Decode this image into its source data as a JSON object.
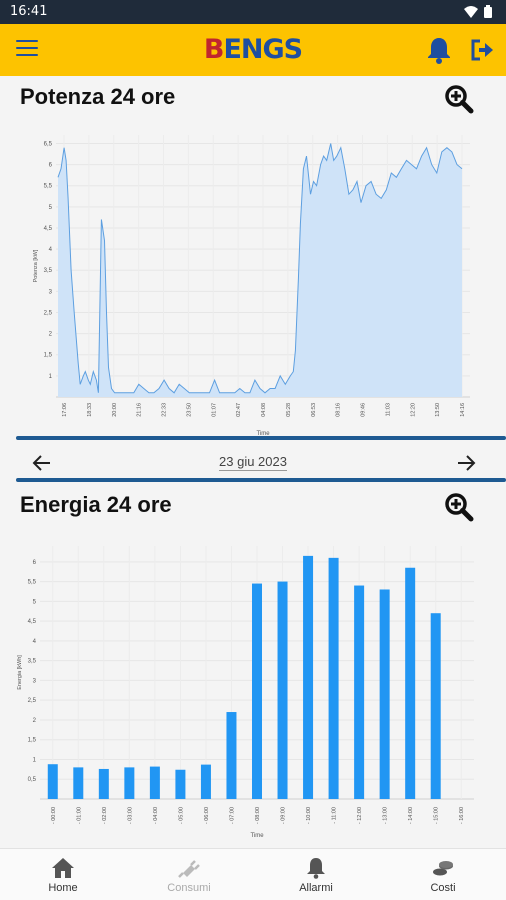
{
  "status_bar": {
    "time": "16:41"
  },
  "app": {
    "logo_first": "B",
    "logo_rest": "ENGS"
  },
  "power_section": {
    "title": "Potenza 24 ore"
  },
  "energy_section": {
    "title": "Energia 24 ore"
  },
  "date_nav": {
    "date": "23 giu 2023"
  },
  "bottom_nav": {
    "items": [
      {
        "label": "Home",
        "icon": "home-icon",
        "enabled": true
      },
      {
        "label": "Consumi",
        "icon": "plug-icon",
        "enabled": false
      },
      {
        "label": "Allarmi",
        "icon": "bell-icon",
        "enabled": true
      },
      {
        "label": "Costi",
        "icon": "coins-icon",
        "enabled": true
      }
    ]
  },
  "colors": {
    "accent": "#fdc300",
    "brand_blue": "#1f4fa0",
    "brand_red": "#c0262e",
    "bar": "#2196f3",
    "area_fill": "#cfe3f8",
    "area_line": "#5d9fe0",
    "divider": "#1e5a92"
  },
  "chart_data": [
    {
      "type": "area",
      "title": "",
      "xlabel": "Time",
      "ylabel": "Potenza [kW]",
      "ylim": [
        0.5,
        6.7
      ],
      "yticks": [
        "1",
        "1,5",
        "2",
        "2,5",
        "3",
        "3,5",
        "4",
        "4,5",
        "5",
        "5,5",
        "6",
        "6,5"
      ],
      "ytick_values": [
        1,
        1.5,
        2,
        2.5,
        3,
        3.5,
        4,
        4.5,
        5,
        5.5,
        6,
        6.5
      ],
      "xticks": [
        "17:06",
        "18:33",
        "20:00",
        "21:16",
        "22:33",
        "23:50",
        "01:07",
        "02:47",
        "04:08",
        "05:28",
        "06:53",
        "08:16",
        "09:46",
        "11:03",
        "12:20",
        "13:50",
        "14:16"
      ],
      "grid": true,
      "x": [
        0,
        0.3,
        0.6,
        0.8,
        1.0,
        1.3,
        1.6,
        2.0,
        2.2,
        2.5,
        2.7,
        3.0,
        3.2,
        3.5,
        3.8,
        4.0,
        4.3,
        4.6,
        4.8,
        5.0,
        5.3,
        5.6,
        6.0,
        6.5,
        7.0,
        7.5,
        8.0,
        8.5,
        9.0,
        9.5,
        10.0,
        10.5,
        11.0,
        11.5,
        12.0,
        12.5,
        13.0,
        13.5,
        14.0,
        14.5,
        15.0,
        15.5,
        16.0,
        16.5,
        17.0,
        17.5,
        18.0,
        18.5,
        19.0,
        19.5,
        20.0,
        20.5,
        21.0,
        21.5,
        22.0,
        22.5,
        23.0,
        23.3,
        23.5,
        23.8,
        24.0,
        24.3,
        24.6,
        25.0,
        25.3,
        25.6,
        26.0,
        26.3,
        26.6,
        27.0,
        27.3,
        27.6,
        28.0,
        28.4,
        28.8,
        29.2,
        29.6,
        30.0,
        30.5,
        31.0,
        31.5,
        32.0,
        32.5,
        33.0,
        33.5,
        34.0,
        34.5,
        35.0,
        35.5,
        36.0,
        36.5,
        37.0,
        37.5,
        38.0,
        38.5,
        39.0,
        39.5,
        40.0
      ],
      "y": [
        5.7,
        5.9,
        6.4,
        6.1,
        5.2,
        3.5,
        2.5,
        1.3,
        0.8,
        1.0,
        1.1,
        0.9,
        0.8,
        1.1,
        0.9,
        0.6,
        4.7,
        4.2,
        2.5,
        1.2,
        0.7,
        0.6,
        0.6,
        0.6,
        0.6,
        0.6,
        0.8,
        0.7,
        0.6,
        0.6,
        0.7,
        0.9,
        0.7,
        0.6,
        0.8,
        0.7,
        0.6,
        0.6,
        0.6,
        0.6,
        0.6,
        0.9,
        0.6,
        0.6,
        0.6,
        0.6,
        0.7,
        0.6,
        0.6,
        0.9,
        0.7,
        0.6,
        0.7,
        0.7,
        1.0,
        0.8,
        1.0,
        1.1,
        1.6,
        3.3,
        4.6,
        5.9,
        6.2,
        5.3,
        5.6,
        5.5,
        6.0,
        6.2,
        6.1,
        6.5,
        6.1,
        6.2,
        6.4,
        5.9,
        5.3,
        5.4,
        5.6,
        5.1,
        5.5,
        5.6,
        5.3,
        5.2,
        5.4,
        5.8,
        5.7,
        5.9,
        6.1,
        6.0,
        5.9,
        6.2,
        6.4,
        6.0,
        5.8,
        6.3,
        6.4,
        6.3,
        6.0,
        5.9
      ]
    },
    {
      "type": "bar",
      "title": "",
      "xlabel": "Time",
      "ylabel": "Energia [kWh]",
      "ylim": [
        0,
        6.4
      ],
      "yticks": [
        "0,5",
        "1",
        "1,5",
        "2",
        "2,5",
        "3",
        "3,5",
        "4",
        "4,5",
        "5",
        "5,5",
        "6"
      ],
      "ytick_values": [
        0.5,
        1,
        1.5,
        2,
        2.5,
        3,
        3.5,
        4,
        4.5,
        5,
        5.5,
        6
      ],
      "categories": [
        "00:00",
        "01:00",
        "02:00",
        "03:00",
        "04:00",
        "05:00",
        "06:00",
        "07:00",
        "08:00",
        "09:00",
        "10:00",
        "11:00",
        "12:00",
        "13:00",
        "14:00",
        "15:00",
        "16:00"
      ],
      "values": [
        0.88,
        0.8,
        0.76,
        0.8,
        0.82,
        0.74,
        0.87,
        2.2,
        5.45,
        5.5,
        6.15,
        6.1,
        5.4,
        5.3,
        5.85,
        4.7,
        0
      ],
      "grid": true
    }
  ]
}
